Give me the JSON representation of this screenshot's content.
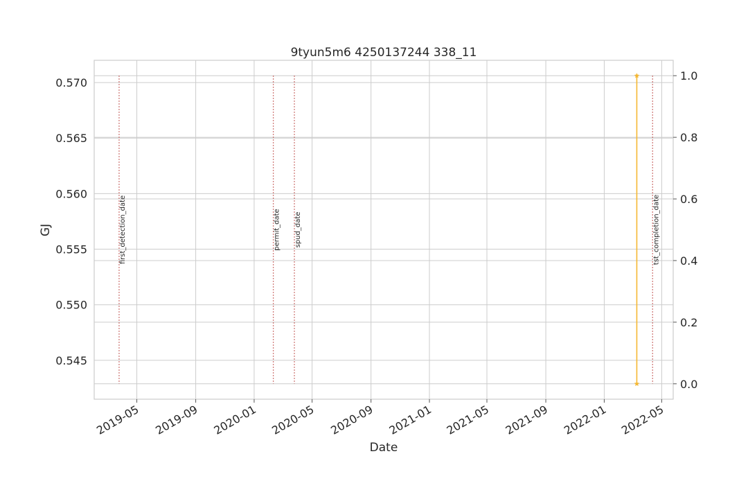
{
  "chart_data": {
    "type": "line",
    "title": "9tyun5m6 4250137244 338_11",
    "xlabel": "Date",
    "ylabel_left": "GJ",
    "ylabel_left_color": "#1f77b4",
    "ylim_left": [
      0.5415,
      0.572
    ],
    "yticks_left": [
      0.545,
      0.55,
      0.555,
      0.56,
      0.565,
      0.57
    ],
    "ylim_right": [
      -0.05,
      1.05
    ],
    "yticks_right": [
      0.0,
      0.2,
      0.4,
      0.6,
      0.8,
      1.0
    ],
    "xlim": [
      "2019-02-01",
      "2022-05-25"
    ],
    "xticks": [
      "2019-05",
      "2019-09",
      "2020-01",
      "2020-05",
      "2020-09",
      "2021-01",
      "2021-05",
      "2021-09",
      "2022-01",
      "2022-05"
    ],
    "grid": true,
    "series": [
      {
        "axis": "right",
        "color": "#f5b731",
        "marker": "star",
        "x": [
          "2022-03-10",
          "2022-03-10"
        ],
        "y": [
          1.0,
          0.0
        ]
      }
    ],
    "annotations": [
      {
        "label": "first_detection_date",
        "x": "2019-03-25",
        "color": "#c0504d",
        "style": "dotted"
      },
      {
        "label": "permit_date",
        "x": "2020-02-10",
        "color": "#c0504d",
        "style": "dotted"
      },
      {
        "label": "spud_date",
        "x": "2020-03-25",
        "color": "#c0504d",
        "style": "dotted"
      },
      {
        "label": "tst_completion_date",
        "x": "2022-04-12",
        "color": "#c0504d",
        "style": "dotted"
      }
    ]
  }
}
